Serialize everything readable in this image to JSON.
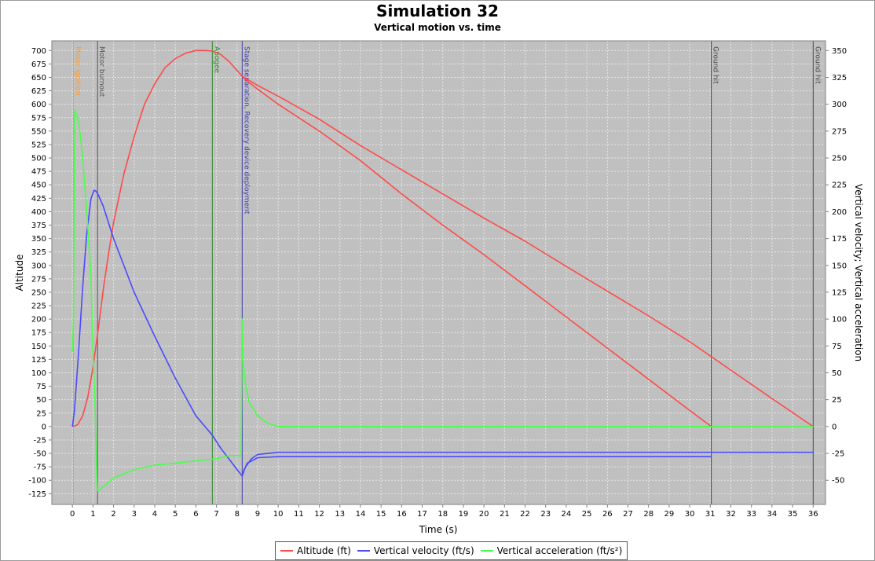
{
  "colors": {
    "altitude": "#ff4a4a",
    "velocity": "#4a4aff",
    "acceleration": "#4aff4a",
    "plot_background": "#c0c0c0",
    "grid": "#e6e6e6",
    "event_ignition": "#ff9a2a",
    "event_burnout": "#555555",
    "event_apogee": "#2a8a2a",
    "event_separation": "#3a3aaa",
    "event_ground": "#444444"
  },
  "legend": {
    "altitude": "Altitude (ft)",
    "velocity": "Vertical velocity (ft/s)",
    "acceleration": "Vertical acceleration (ft/s²)"
  },
  "chart_data": {
    "type": "line",
    "title": "Simulation 32",
    "subtitle": "Vertical motion vs. time",
    "xlabel": "Time (s)",
    "ylabel": "Altitude",
    "y2label": "Vertical velocity; Vertical acceleration",
    "xlim": [
      -1,
      36.6
    ],
    "ylim": [
      -145,
      718
    ],
    "y2lim": [
      -72.5,
      359
    ],
    "x_ticks": [
      0,
      1,
      2,
      3,
      4,
      5,
      6,
      7,
      8,
      9,
      10,
      11,
      12,
      13,
      14,
      15,
      16,
      17,
      18,
      19,
      20,
      21,
      22,
      23,
      24,
      25,
      26,
      27,
      28,
      29,
      30,
      31,
      32,
      33,
      34,
      35,
      36
    ],
    "y_ticks": [
      -125,
      -100,
      -75,
      -50,
      -25,
      0,
      25,
      50,
      75,
      100,
      125,
      150,
      175,
      200,
      225,
      250,
      275,
      300,
      325,
      350,
      375,
      400,
      425,
      450,
      475,
      500,
      525,
      550,
      575,
      600,
      625,
      650,
      675,
      700
    ],
    "y2_ticks": [
      -50,
      -25,
      0,
      25,
      50,
      75,
      100,
      125,
      150,
      175,
      200,
      225,
      250,
      275,
      300,
      325,
      350
    ],
    "grid": true,
    "legend_position": "bottom",
    "events": [
      {
        "label": "Motor ignition",
        "x": 0.05,
        "color_key": "event_ignition"
      },
      {
        "label": "Motor burnout",
        "x": 1.22,
        "color_key": "event_burnout"
      },
      {
        "label": "Apogee",
        "x": 6.8,
        "color_key": "event_apogee"
      },
      {
        "label": "Stage separation, Recovery device deployment",
        "x": 8.25,
        "color_key": "event_separation"
      },
      {
        "label": "Ground hit",
        "x": 31.05,
        "color_key": "event_ground"
      },
      {
        "label": "Ground hit",
        "x": 36.0,
        "color_key": "event_ground"
      }
    ],
    "series": [
      {
        "key": "altitude",
        "name": "Altitude (ft)",
        "axis": "left",
        "x": [
          0,
          0.25,
          0.5,
          0.75,
          1.0,
          1.25,
          1.5,
          1.75,
          2.0,
          2.5,
          3.0,
          3.5,
          4.0,
          4.5,
          5.0,
          5.5,
          6.0,
          6.5,
          6.8,
          7.2,
          7.6,
          8.0,
          8.25,
          8.6,
          9,
          10,
          12,
          14,
          16,
          18,
          20,
          22,
          24,
          26,
          28,
          30,
          31.05
        ],
        "y": [
          0,
          3,
          20,
          55,
          110,
          180,
          255,
          320,
          380,
          470,
          540,
          600,
          638,
          668,
          685,
          695,
          700,
          700,
          699,
          693,
          680,
          663,
          652,
          640,
          628,
          600,
          550,
          495,
          433,
          375,
          320,
          262,
          204,
          146,
          88,
          30,
          0
        ]
      },
      {
        "key": "altitude_b",
        "name": "",
        "axis": "left",
        "x": [
          8.25,
          9,
          10,
          12,
          14,
          16,
          18,
          20,
          22,
          24,
          26,
          28,
          30,
          32,
          34,
          36
        ],
        "y": [
          652,
          635,
          615,
          572,
          523,
          478,
          433,
          388,
          345,
          298,
          252,
          206,
          158,
          105,
          52,
          0
        ]
      },
      {
        "key": "velocity",
        "name": "Vertical velocity (ft/s)",
        "axis": "right",
        "x": [
          0,
          0.1,
          0.3,
          0.5,
          0.7,
          0.9,
          1.05,
          1.15,
          1.25,
          1.5,
          2,
          3,
          4,
          5,
          6,
          6.8,
          7.2,
          7.6,
          8.0,
          8.25,
          8.35,
          8.5,
          9,
          10,
          12,
          14,
          16,
          18,
          20,
          25,
          31.05
        ],
        "y": [
          0,
          15,
          70,
          130,
          180,
          212,
          220,
          219,
          216,
          205,
          175,
          125,
          84,
          45,
          10,
          -8,
          -20,
          -30,
          -40,
          -46,
          -40,
          -34,
          -29,
          -28,
          -28,
          -28,
          -28,
          -28,
          -28,
          -28,
          -28
        ]
      },
      {
        "key": "velocity_b",
        "name": "",
        "axis": "right",
        "x": [
          8.25,
          8.4,
          8.7,
          9,
          10,
          12,
          14,
          16,
          18,
          20,
          25,
          30,
          36
        ],
        "y": [
          -46,
          -38,
          -30,
          -26,
          -24,
          -24,
          -24,
          -24,
          -24,
          -24,
          -24,
          -24,
          -24
        ]
      },
      {
        "key": "acceleration",
        "name": "Vertical acceleration (ft/s²)",
        "axis": "right",
        "x": [
          0.0,
          0.05,
          0.12,
          0.3,
          0.5,
          0.7,
          0.9,
          1.0,
          1.1,
          1.2,
          1.22,
          1.25,
          1.5,
          2,
          3,
          4,
          5,
          6,
          7,
          7.6,
          8.0,
          8.2,
          8.25,
          8.3,
          8.4,
          8.6,
          9,
          9.5,
          10,
          12,
          15,
          20,
          25,
          31.05
        ],
        "y": [
          70,
          100,
          294,
          285,
          250,
          200,
          140,
          70,
          20,
          -58,
          -58,
          -60,
          -56,
          -48,
          -40,
          -36,
          -34,
          -32,
          -30,
          -27,
          -27,
          -27,
          100,
          60,
          40,
          22,
          10,
          3,
          0,
          0,
          0,
          0,
          0,
          0
        ]
      },
      {
        "key": "acceleration_b",
        "name": "",
        "axis": "right",
        "x": [
          10,
          20,
          30,
          36
        ],
        "y": [
          0,
          0,
          0,
          0
        ]
      }
    ]
  }
}
